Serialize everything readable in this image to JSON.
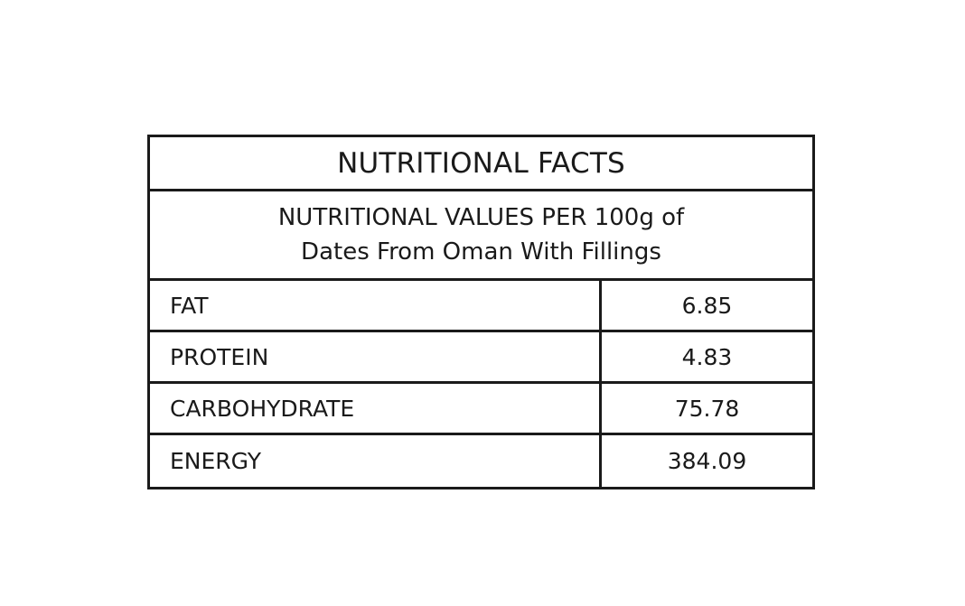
{
  "table": {
    "title": "NUTRITIONAL FACTS",
    "subtitle_line1": "NUTRITIONAL VALUES PER 100g of",
    "subtitle_line2": "Dates From Oman With Fillings",
    "rows": [
      {
        "label": "FAT",
        "value": "6.85"
      },
      {
        "label": "PROTEIN",
        "value": "4.83"
      },
      {
        "label": "CARBOHYDRATE",
        "value": "75.78"
      },
      {
        "label": "ENERGY",
        "value": "384.09"
      }
    ]
  }
}
